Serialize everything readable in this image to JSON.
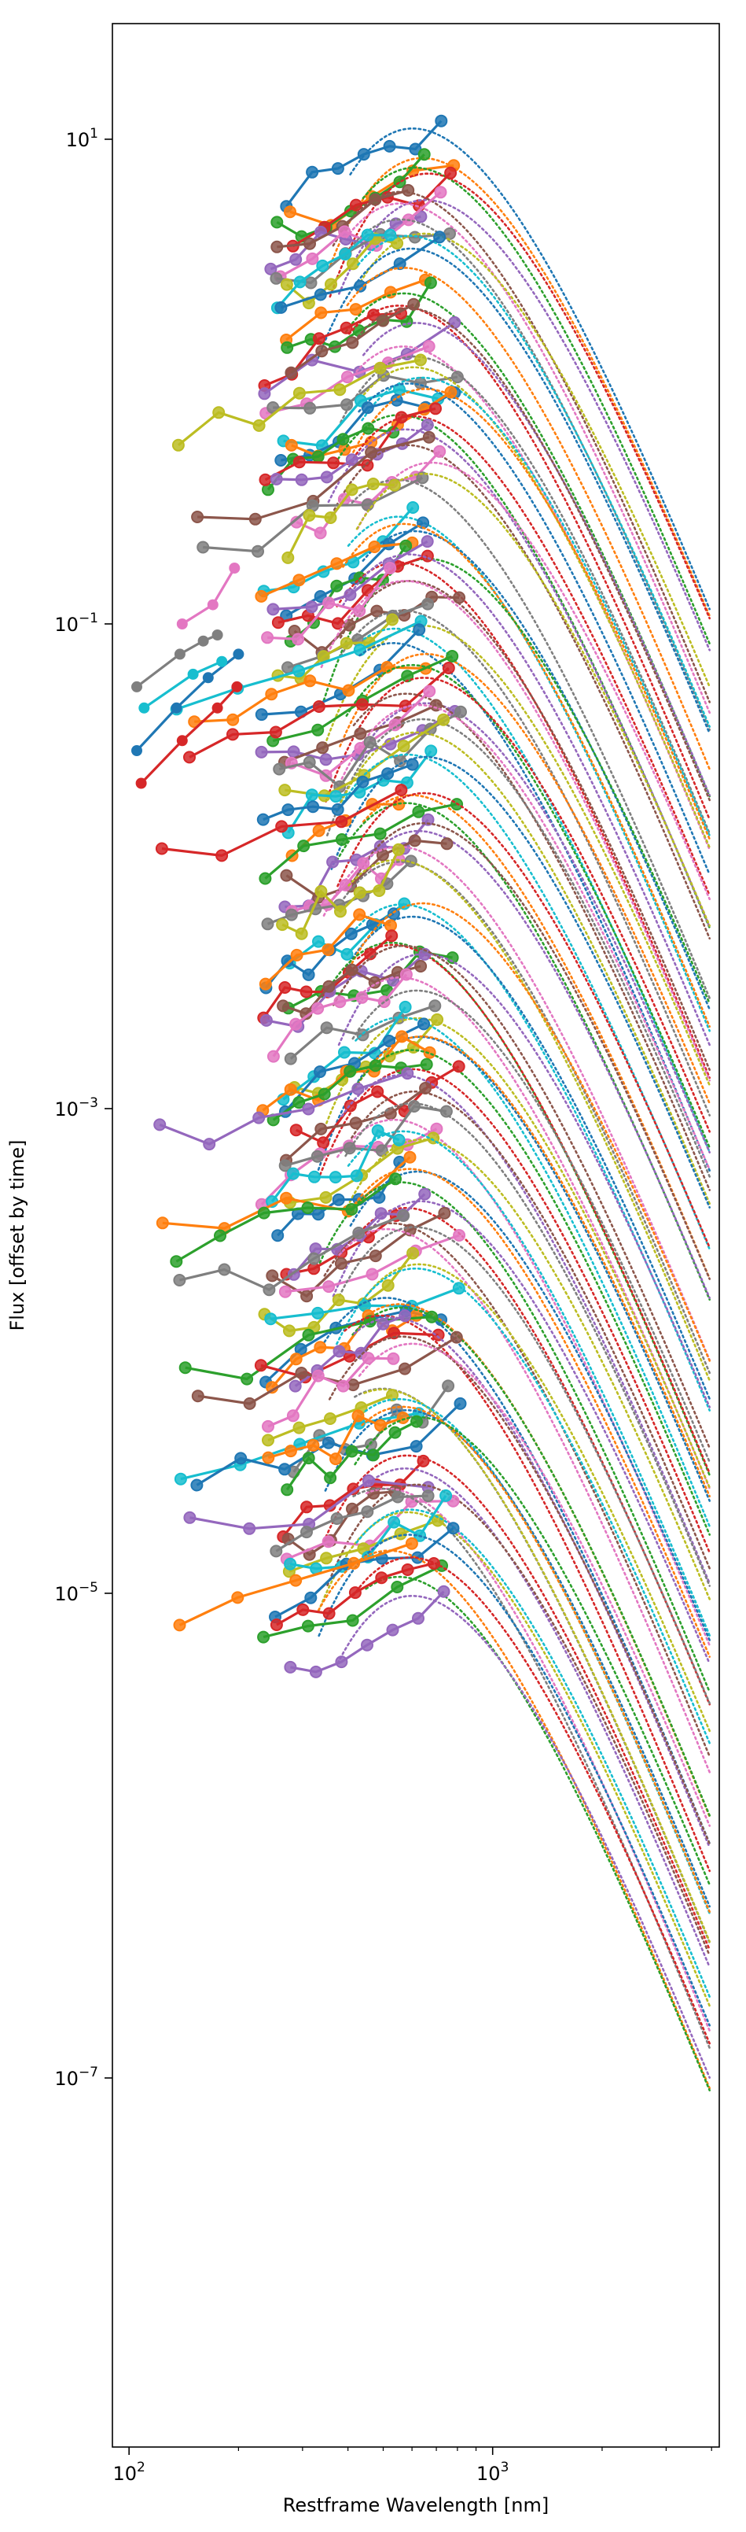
{
  "chart_data": {
    "type": "line",
    "xlabel": "Restframe Wavelength [nm]",
    "ylabel": "Flux [offset by time]",
    "xscale": "log",
    "yscale": "log",
    "xlim": [
      90,
      4200
    ],
    "ylim": [
      3e-09,
      30
    ],
    "x_ticks": [
      {
        "value": 100,
        "base": "10",
        "exp": "2"
      },
      {
        "value": 1000,
        "base": "10",
        "exp": "3"
      }
    ],
    "y_ticks": [
      {
        "value": 10,
        "base": "10",
        "exp": "1"
      },
      {
        "value": 0.1,
        "base": "10",
        "exp": "−1"
      },
      {
        "value": 0.001,
        "base": "10",
        "exp": "−3"
      },
      {
        "value": 1e-05,
        "base": "10",
        "exp": "−5"
      },
      {
        "value": 1e-07,
        "base": "10",
        "exp": "−7"
      }
    ],
    "grid": false,
    "legend": "none",
    "observed_style": "solid line with circle markers",
    "model_style": "dotted line",
    "colors": [
      "#1f77b4",
      "#ff7f0e",
      "#2ca02c",
      "#d62728",
      "#9467bd",
      "#8c564b",
      "#e377c2",
      "#7f7f7f",
      "#bcbd22",
      "#17becf"
    ],
    "early_epochs": [
      {
        "x": [
          105,
          138,
          160,
          175
        ],
        "y": [
          0.055,
          0.075,
          0.085,
          0.09
        ]
      },
      {
        "x": [
          105,
          135,
          165,
          200
        ],
        "y": [
          0.03,
          0.045,
          0.06,
          0.075
        ]
      },
      {
        "x": [
          108,
          140,
          175,
          198
        ],
        "y": [
          0.022,
          0.033,
          0.045,
          0.055
        ]
      },
      {
        "x": [
          140,
          170,
          195
        ],
        "y": [
          0.1,
          0.12,
          0.17
        ]
      },
      {
        "x": [
          110,
          150,
          180
        ],
        "y": [
          0.045,
          0.062,
          0.07
        ]
      }
    ],
    "epochs": {
      "count": 115,
      "peak_flux_range": [
        1e-05,
        10
      ],
      "note": "each epoch: photometry points between ~200-900 nm plus a blackbody-like dotted model extending to ~4000 nm"
    }
  }
}
